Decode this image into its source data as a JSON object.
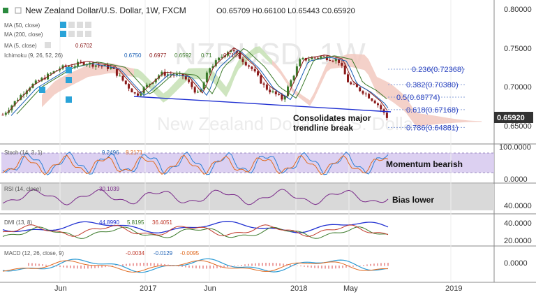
{
  "header": {
    "title": "New Zealand Dollar/U.S. Dollar, 1W, FXCM",
    "ohlc": "O0.65709 H0.66100 L0.65443 C0.65920"
  },
  "watermark": {
    "symbol": "NZDUSD, 1W",
    "name": "New Zealand Dollar / U.S. Dollar"
  },
  "indicators": {
    "ma50": "MA (50, close)",
    "ma200": "MA (200, close)",
    "ma5": "MA (5, close)",
    "ma5_value": "0.6702",
    "ichimoku": "Ichimoku (9, 26, 52, 26)",
    "ichimoku_values": [
      "0.6750",
      "0.6977",
      "0.6592",
      "0.71",
      "0.7169"
    ]
  },
  "price_axis": {
    "ticks": [
      "0.80000",
      "0.75000",
      "0.70000",
      "0.65000"
    ],
    "last_price": "0.65920"
  },
  "fib": [
    {
      "label": "0.236(0.72368)",
      "value": 0.72368
    },
    {
      "label": "0.382(0.70380)",
      "value": 0.7038
    },
    {
      "label": "0.5(0.68774)",
      "value": 0.68774
    },
    {
      "label": "0.618(0.67168)",
      "value": 0.67168
    },
    {
      "label": "0.786(0.64881)",
      "value": 0.64881
    }
  ],
  "annotations": {
    "trendline": "Consolidates major\ntrendline break",
    "stoch": "Momentum bearish",
    "rsi": "Bias lower"
  },
  "stoch": {
    "label": "Stoch (14, 3, 1)",
    "k": "9.2496",
    "d": "8.2171",
    "axis": [
      "100.0000",
      "0.0000"
    ]
  },
  "rsi": {
    "label": "RSI (14, close)",
    "value": "30.1039",
    "axis": [
      "40.0000"
    ]
  },
  "dmi": {
    "label": "DMI (13, 8)",
    "v1": "44.8990",
    "v2": "5.8195",
    "v3": "36.4051",
    "axis": [
      "40.0000",
      "20.0000"
    ]
  },
  "macd": {
    "label": "MACD (12, 26, close, 9)",
    "v1": "-0.0034",
    "v2": "-0.0129",
    "v3": "-0.0095",
    "axis": [
      "0.0000"
    ]
  },
  "time_axis": [
    "Jun",
    "2017",
    "Jun",
    "2018",
    "May",
    "2019"
  ],
  "colors": {
    "up": "#3b7a2a",
    "down": "#8b1a1a",
    "cloud_up": "#c5e0b4",
    "cloud_down": "#f2c9c0",
    "trend": "#1f2fd1",
    "fib": "#2a43c0",
    "stoch_band": "#d6c8ee",
    "rsi_band": "#d9d9d9",
    "last": "#333333"
  }
}
